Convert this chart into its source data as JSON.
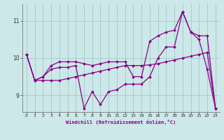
{
  "xlabel": "Windchill (Refroidissement éolien,°C)",
  "background_color": "#cce8e8",
  "grid_color": "#aacccc",
  "line_color": "#880088",
  "xlim": [
    -0.5,
    23.5
  ],
  "ylim": [
    8.55,
    11.45
  ],
  "yticks": [
    9,
    10,
    11
  ],
  "xticks": [
    0,
    1,
    2,
    3,
    4,
    5,
    6,
    7,
    8,
    9,
    10,
    11,
    12,
    13,
    14,
    15,
    16,
    17,
    18,
    19,
    20,
    21,
    22,
    23
  ],
  "series": [
    [
      10.1,
      9.4,
      9.5,
      9.8,
      9.9,
      9.9,
      9.9,
      9.85,
      9.8,
      9.85,
      9.9,
      9.9,
      9.9,
      9.5,
      9.5,
      10.45,
      10.6,
      10.7,
      10.75,
      11.25,
      10.7,
      10.6,
      10.6,
      8.65
    ],
    [
      10.1,
      9.4,
      9.5,
      9.7,
      9.75,
      9.75,
      9.8,
      8.65,
      9.1,
      8.75,
      9.1,
      9.15,
      9.3,
      9.3,
      9.3,
      9.5,
      10.0,
      10.3,
      10.3,
      11.25,
      10.7,
      10.5,
      9.7,
      8.65
    ],
    [
      10.1,
      9.4,
      9.4,
      9.4,
      9.4,
      9.45,
      9.5,
      9.55,
      9.6,
      9.65,
      9.7,
      9.75,
      9.8,
      9.8,
      9.8,
      9.82,
      9.85,
      9.9,
      9.95,
      10.0,
      10.05,
      10.1,
      10.15,
      8.65
    ]
  ]
}
